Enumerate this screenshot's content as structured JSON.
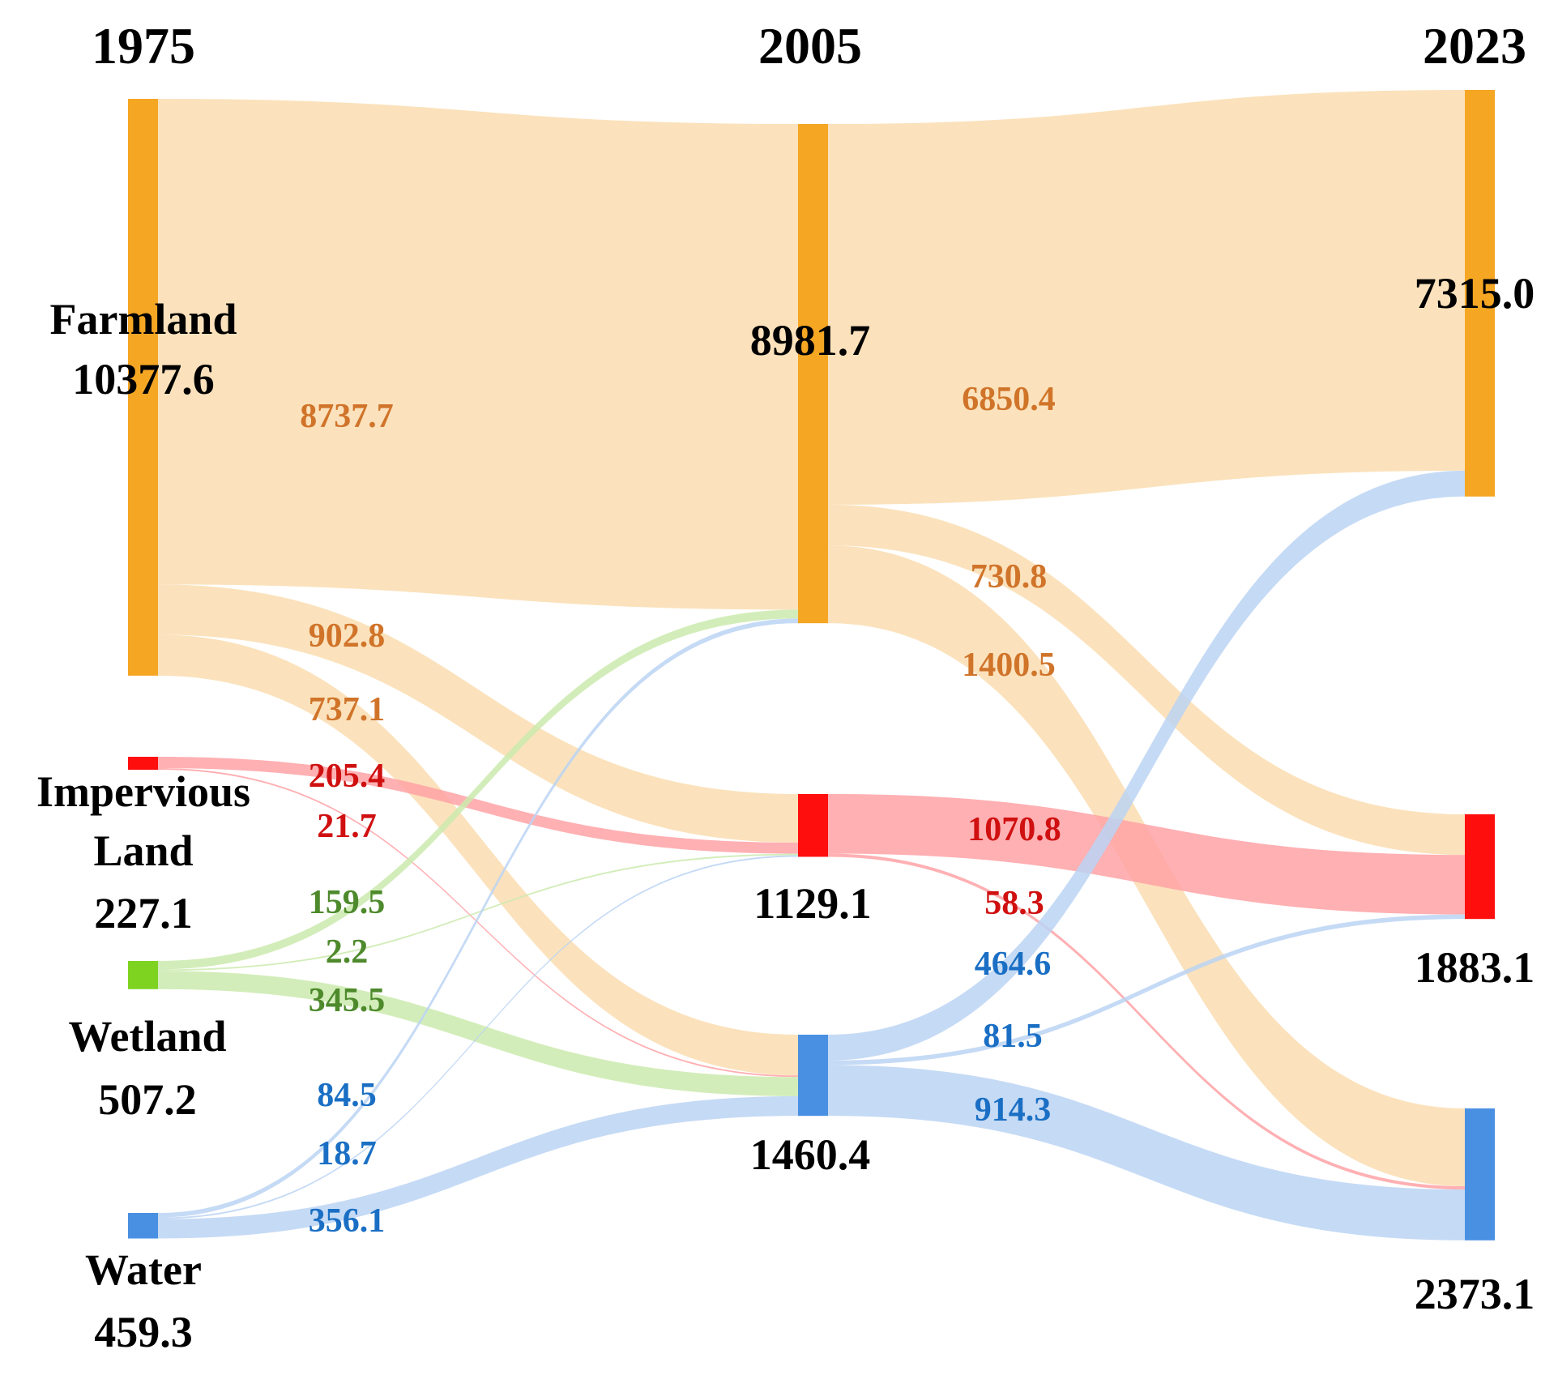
{
  "chart_data": {
    "type": "sankey",
    "unit": "",
    "colors": {
      "farmland": "#F5A623",
      "farmland_flow": "#FADDB0",
      "impervious": "#FF0E0E",
      "impervious_flow": "#FFA2A6",
      "wetland": "#7ED321",
      "wetland_flow": "#CBEAAE",
      "water": "#4A90E2",
      "water_flow": "#BBD4F3",
      "label_farmland": "#D0742A",
      "label_impervious": "#D01010",
      "label_wetland": "#4E8A2C",
      "label_water": "#1A6FC4"
    },
    "years": [
      "1975",
      "2005",
      "2023"
    ],
    "nodes": [
      {
        "id": "f75",
        "year": "1975",
        "class": "farmland",
        "name_lines": [
          "Farmland"
        ],
        "value": 10377.6,
        "value_text": "10377.6"
      },
      {
        "id": "i75",
        "year": "1975",
        "class": "impervious",
        "name_lines": [
          "Impervious",
          "Land"
        ],
        "value": 227.1,
        "value_text": "227.1"
      },
      {
        "id": "we75",
        "year": "1975",
        "class": "wetland",
        "name_lines": [
          "Wetland"
        ],
        "value": 507.2,
        "value_text": "507.2"
      },
      {
        "id": "wa75",
        "year": "1975",
        "class": "water",
        "name_lines": [
          "Water"
        ],
        "value": 459.3,
        "value_text": "459.3"
      },
      {
        "id": "f05",
        "year": "2005",
        "class": "farmland",
        "name_lines": [],
        "value": 8981.7,
        "value_text": "8981.7"
      },
      {
        "id": "i05",
        "year": "2005",
        "class": "impervious",
        "name_lines": [],
        "value": 1129.1,
        "value_text": "1129.1"
      },
      {
        "id": "wa05",
        "year": "2005",
        "class": "water",
        "name_lines": [],
        "value": 1460.4,
        "value_text": "1460.4"
      },
      {
        "id": "f23",
        "year": "2023",
        "class": "farmland",
        "name_lines": [],
        "value": 7315.0,
        "value_text": "7315.0"
      },
      {
        "id": "i23",
        "year": "2023",
        "class": "impervious",
        "name_lines": [],
        "value": 1883.1,
        "value_text": "1883.1"
      },
      {
        "id": "wa23",
        "year": "2023",
        "class": "water",
        "name_lines": [],
        "value": 2373.1,
        "value_text": "2373.1"
      }
    ],
    "links": [
      {
        "source": "f75",
        "target": "f05",
        "value": 8737.7,
        "label": "8737.7",
        "class": "farmland"
      },
      {
        "source": "f75",
        "target": "i05",
        "value": 902.8,
        "label": "902.8",
        "class": "farmland"
      },
      {
        "source": "f75",
        "target": "wa05",
        "value": 737.1,
        "label": "737.1",
        "class": "farmland"
      },
      {
        "source": "i75",
        "target": "i05",
        "value": 205.4,
        "label": "205.4",
        "class": "impervious"
      },
      {
        "source": "i75",
        "target": "wa05",
        "value": 21.7,
        "label": "21.7",
        "class": "impervious"
      },
      {
        "source": "we75",
        "target": "f05",
        "value": 159.5,
        "label": "159.5",
        "class": "wetland"
      },
      {
        "source": "we75",
        "target": "i05",
        "value": 2.2,
        "label": "2.2",
        "class": "wetland"
      },
      {
        "source": "we75",
        "target": "wa05",
        "value": 345.5,
        "label": "345.5",
        "class": "wetland"
      },
      {
        "source": "wa75",
        "target": "f05",
        "value": 84.5,
        "label": "84.5",
        "class": "water"
      },
      {
        "source": "wa75",
        "target": "i05",
        "value": 18.7,
        "label": "18.7",
        "class": "water"
      },
      {
        "source": "wa75",
        "target": "wa05",
        "value": 356.1,
        "label": "356.1",
        "class": "water"
      },
      {
        "source": "f05",
        "target": "f23",
        "value": 6850.4,
        "label": "6850.4",
        "class": "farmland"
      },
      {
        "source": "f05",
        "target": "i23",
        "value": 730.8,
        "label": "730.8",
        "class": "farmland"
      },
      {
        "source": "f05",
        "target": "wa23",
        "value": 1400.5,
        "label": "1400.5",
        "class": "farmland"
      },
      {
        "source": "i05",
        "target": "i23",
        "value": 1070.8,
        "label": "1070.8",
        "class": "impervious"
      },
      {
        "source": "i05",
        "target": "wa23",
        "value": 58.3,
        "label": "58.3",
        "class": "impervious"
      },
      {
        "source": "wa05",
        "target": "f23",
        "value": 464.6,
        "label": "464.6",
        "class": "water"
      },
      {
        "source": "wa05",
        "target": "i23",
        "value": 81.5,
        "label": "81.5",
        "class": "water"
      },
      {
        "source": "wa05",
        "target": "wa23",
        "value": 914.3,
        "label": "914.3",
        "class": "water"
      }
    ]
  }
}
